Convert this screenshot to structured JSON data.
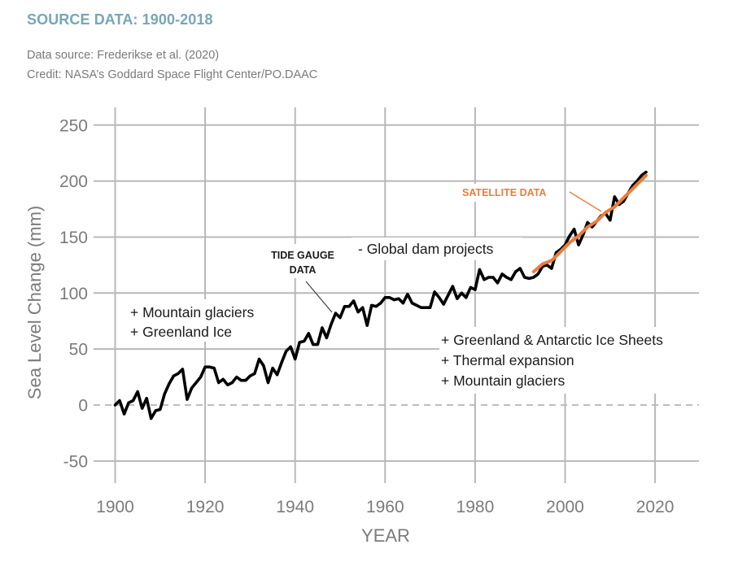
{
  "header": {
    "title": "SOURCE DATA: 1900-2018",
    "source_line": "Data source: Frederikse et al. (2020)",
    "credit_line": "Credit: NASA’s Goddard Space Flight Center/PO.DAAC"
  },
  "colors": {
    "title": "#77a6b8",
    "tide_gauge": "#000000",
    "satellite": "#ef7b3a",
    "grid": "#b8b8b8"
  },
  "chart_data": {
    "type": "line",
    "title": "",
    "xlabel": "YEAR",
    "ylabel": "Sea Level Change (mm)",
    "xlim": [
      1900,
      2030
    ],
    "ylim": [
      -50,
      250
    ],
    "xticks": [
      1900,
      1920,
      1940,
      1960,
      1980,
      2000,
      2020
    ],
    "yticks": [
      250,
      200,
      150,
      100,
      50,
      0,
      -50
    ],
    "xtick_labels": [
      "1900",
      "1920",
      "1940",
      "1960",
      "1980",
      "2000",
      "2020"
    ],
    "ytick_labels": [
      "250",
      "200",
      "150",
      "100",
      "50",
      "0",
      "-50"
    ],
    "grid": true,
    "zero_line": "dashed",
    "series": [
      {
        "name": "Tide Gauge Data",
        "color": "#000000",
        "x": [
          1900,
          1901,
          1902,
          1903,
          1904,
          1905,
          1906,
          1907,
          1908,
          1909,
          1910,
          1911,
          1912,
          1913,
          1914,
          1915,
          1916,
          1917,
          1918,
          1919,
          1920,
          1921,
          1922,
          1923,
          1924,
          1925,
          1926,
          1927,
          1928,
          1929,
          1930,
          1931,
          1932,
          1933,
          1934,
          1935,
          1936,
          1937,
          1938,
          1939,
          1940,
          1941,
          1942,
          1943,
          1944,
          1945,
          1946,
          1947,
          1948,
          1949,
          1950,
          1951,
          1952,
          1953,
          1954,
          1955,
          1956,
          1957,
          1958,
          1959,
          1960,
          1961,
          1962,
          1963,
          1964,
          1965,
          1966,
          1967,
          1968,
          1969,
          1970,
          1971,
          1972,
          1973,
          1974,
          1975,
          1976,
          1977,
          1978,
          1979,
          1980,
          1981,
          1982,
          1983,
          1984,
          1985,
          1986,
          1987,
          1988,
          1989,
          1990,
          1991,
          1992,
          1993,
          1994,
          1995,
          1996,
          1997,
          1998,
          1999,
          2000,
          2001,
          2002,
          2003,
          2004,
          2005,
          2006,
          2007,
          2008,
          2009,
          2010,
          2011,
          2012,
          2013,
          2014,
          2015,
          2016,
          2017,
          2018
        ],
        "values": [
          0,
          4,
          -8,
          2,
          4,
          12,
          -3,
          6,
          -12,
          -5,
          -4,
          10,
          19,
          26,
          28,
          32,
          5,
          15,
          20,
          25,
          34,
          34,
          33,
          20,
          23,
          18,
          20,
          25,
          22,
          22,
          26,
          28,
          41,
          35,
          20,
          33,
          27,
          38,
          48,
          52,
          41,
          56,
          57,
          64,
          54,
          54,
          69,
          60,
          72,
          82,
          78,
          88,
          88,
          93,
          83,
          87,
          71,
          89,
          88,
          91,
          96,
          96,
          94,
          95,
          91,
          99,
          91,
          89,
          87,
          87,
          87,
          101,
          96,
          90,
          98,
          106,
          95,
          100,
          96,
          105,
          103,
          121,
          112,
          114,
          114,
          109,
          117,
          114,
          112,
          119,
          122,
          114,
          113,
          114,
          117,
          124,
          125,
          122,
          136,
          139,
          143,
          151,
          157,
          143,
          152,
          163,
          159,
          164,
          169,
          171,
          165,
          186,
          179,
          182,
          189,
          196,
          200,
          205,
          208
        ]
      },
      {
        "name": "Satellite Data",
        "color": "#ef7b3a",
        "x": [
          1993,
          1995,
          1997,
          1999,
          2001,
          2003,
          2005,
          2007,
          2009,
          2011,
          2013,
          2015,
          2017,
          2018
        ],
        "values": [
          119,
          126,
          129,
          137,
          145,
          151,
          159,
          164,
          172,
          177,
          185,
          193,
          201,
          205
        ]
      }
    ],
    "annotations": [
      {
        "id": "left-contrib-1",
        "text": "+ Mountain glaciers"
      },
      {
        "id": "left-contrib-2",
        "text": "+ Greenland Ice"
      },
      {
        "id": "tide-label-1",
        "text": "TIDE GAUGE"
      },
      {
        "id": "tide-label-2",
        "text": "DATA"
      },
      {
        "id": "dam",
        "text": "- Global dam projects"
      },
      {
        "id": "sat-label",
        "text": "SATELLITE DATA"
      },
      {
        "id": "right-contrib-1",
        "text": "+ Greenland & Antarctic Ice Sheets"
      },
      {
        "id": "right-contrib-2",
        "text": "+ Thermal expansion"
      },
      {
        "id": "right-contrib-3",
        "text": "+ Mountain glaciers"
      }
    ]
  }
}
